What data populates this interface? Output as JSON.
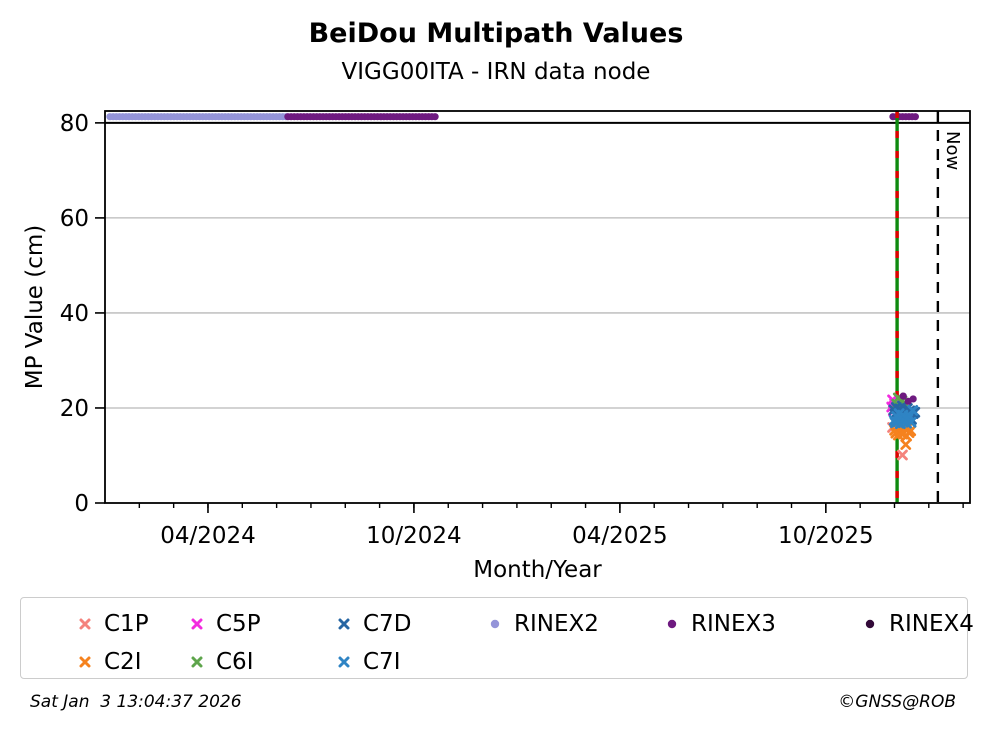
{
  "chart_data": {
    "type": "scatter",
    "title": "BeiDou Multipath Values",
    "subtitle": "VIGG00ITA - IRN data node",
    "xlabel": "Month/Year",
    "ylabel": "MP Value (cm)",
    "xlim": [
      2024.0,
      2026.1
    ],
    "ylim": [
      0,
      82.5
    ],
    "x_ticks": [
      {
        "value": 2024.25,
        "label": "04/2024"
      },
      {
        "value": 2024.75,
        "label": "10/2024"
      },
      {
        "value": 2025.25,
        "label": "04/2025"
      },
      {
        "value": 2025.75,
        "label": "10/2025"
      }
    ],
    "x_minor_step_months": 1,
    "y_ticks": [
      0,
      20,
      40,
      60,
      80
    ],
    "grid": {
      "y_values": [
        20,
        40,
        60
      ],
      "color": "#b9b9b9"
    },
    "threshold_line": {
      "y": 80,
      "color": "#000000",
      "style": "solid"
    },
    "event_line": {
      "x": 2025.923,
      "line_color": "#0f8a0f",
      "dash_color": "#e00000",
      "style": "green-with-red-dashes"
    },
    "now_line": {
      "x": 2026.022,
      "label": "Now",
      "color": "#000000",
      "style": "dashed"
    },
    "series": [
      {
        "name": "C1P",
        "marker": "x",
        "color": "#f4837d",
        "points": [
          [
            2025.912,
            15.9
          ],
          [
            2025.936,
            10.1
          ]
        ]
      },
      {
        "name": "C2I",
        "marker": "x",
        "color": "#f5821e",
        "points": [
          [
            2025.917,
            15.3
          ],
          [
            2025.92,
            14.7
          ],
          [
            2025.923,
            15.8
          ],
          [
            2025.926,
            14.3
          ],
          [
            2025.929,
            15.5
          ],
          [
            2025.931,
            14.9
          ],
          [
            2025.934,
            15.1
          ],
          [
            2025.937,
            14.5
          ],
          [
            2025.94,
            16.0
          ],
          [
            2025.943,
            15.6
          ],
          [
            2025.946,
            14.1
          ],
          [
            2025.949,
            15.9
          ],
          [
            2025.944,
            12.3
          ],
          [
            2025.952,
            14.8
          ],
          [
            2025.956,
            15.2
          ]
        ]
      },
      {
        "name": "C5P",
        "marker": "x",
        "color": "#f32bdf",
        "points": [
          [
            2025.912,
            21.7
          ],
          [
            2025.91,
            20.2
          ],
          [
            2025.917,
            20.9
          ],
          [
            2025.914,
            19.4
          ]
        ]
      },
      {
        "name": "C6I",
        "marker": "x",
        "color": "#5ea54c",
        "points": [
          [
            2025.926,
            22.1
          ],
          [
            2025.935,
            21.5
          ],
          [
            2025.922,
            20.8
          ],
          [
            2025.931,
            19.9
          ],
          [
            2025.94,
            21.0
          ]
        ]
      },
      {
        "name": "C7D",
        "marker": "x",
        "color": "#2766a3",
        "points": [
          [
            2025.915,
            19.6
          ],
          [
            2025.918,
            18.7
          ],
          [
            2025.921,
            20.1
          ],
          [
            2025.924,
            19.0
          ],
          [
            2025.927,
            18.3
          ],
          [
            2025.93,
            19.8
          ],
          [
            2025.933,
            18.9
          ],
          [
            2025.936,
            20.4
          ],
          [
            2025.939,
            18.1
          ],
          [
            2025.942,
            19.3
          ],
          [
            2025.945,
            17.8
          ],
          [
            2025.948,
            19.9
          ],
          [
            2025.951,
            18.5
          ],
          [
            2025.954,
            19.4
          ],
          [
            2025.958,
            17.6
          ],
          [
            2025.962,
            18.8
          ],
          [
            2025.966,
            19.1
          ]
        ]
      },
      {
        "name": "C7I",
        "marker": "x",
        "color": "#2f84c4",
        "points": [
          [
            2025.916,
            17.4
          ],
          [
            2025.919,
            16.9
          ],
          [
            2025.922,
            18.2
          ],
          [
            2025.925,
            17.1
          ],
          [
            2025.928,
            18.8
          ],
          [
            2025.931,
            16.7
          ],
          [
            2025.934,
            17.9
          ],
          [
            2025.937,
            18.5
          ],
          [
            2025.94,
            17.2
          ],
          [
            2025.943,
            18.0
          ],
          [
            2025.946,
            16.8
          ],
          [
            2025.949,
            17.7
          ],
          [
            2025.953,
            18.3
          ],
          [
            2025.957,
            17.0
          ],
          [
            2025.961,
            19.5
          ]
        ]
      },
      {
        "name": "RINEX2",
        "marker": "circle",
        "color": "#9494d9",
        "bands": [
          {
            "x1": 2024.012,
            "x2": 2024.444,
            "y": 81.3
          }
        ],
        "points": []
      },
      {
        "name": "RINEX3",
        "marker": "circle",
        "color": "#6e1a80",
        "bands": [
          {
            "x1": 2024.444,
            "x2": 2024.806,
            "y": 81.3
          },
          {
            "x1": 2025.913,
            "x2": 2025.971,
            "y": 81.3
          }
        ],
        "points": [
          [
            2025.938,
            22.5
          ],
          [
            2025.962,
            21.9
          ],
          [
            2025.95,
            21.4
          ]
        ]
      },
      {
        "name": "RINEX4",
        "marker": "circle",
        "color": "#320a38",
        "points": []
      }
    ],
    "legend": {
      "order": [
        "C1P",
        "C5P",
        "C7D",
        "RINEX2",
        "RINEX3",
        "RINEX4",
        "C2I",
        "C6I",
        "C7I"
      ]
    }
  },
  "footer": {
    "timestamp": "Sat Jan  3 13:04:37 2026",
    "copyright": "©GNSS@ROB"
  }
}
